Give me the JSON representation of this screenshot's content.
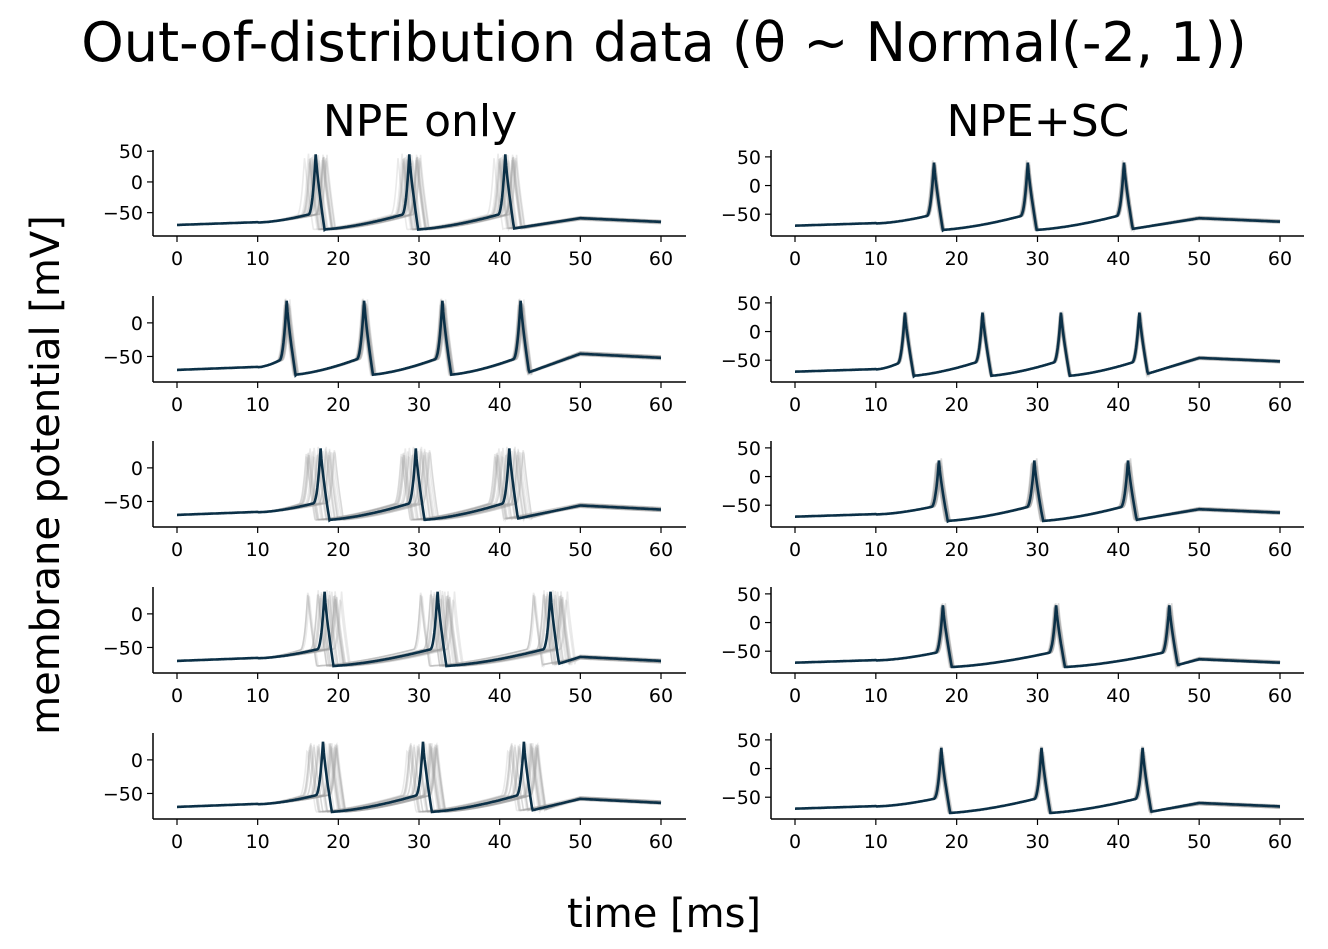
{
  "title": "Out-of-distribution data (θ ~ Normal(-2, 1))",
  "xlabel": "time [ms]",
  "ylabel": "membrane potential [mV]",
  "columns": [
    "NPE only",
    "NPE+SC"
  ],
  "colors": {
    "mean_trace": "#0b3047",
    "samples": "#9e9e9e",
    "axis": "#000000"
  },
  "chart_data": [
    {
      "type": "line",
      "panel": "row1-npe-only",
      "xlim": [
        0,
        60
      ],
      "ylim": [
        -88,
        52
      ],
      "xticks": [
        0,
        10,
        20,
        30,
        40,
        50,
        60
      ],
      "yticks": [
        -50,
        0,
        50
      ],
      "spike_times": [
        17.2,
        28.8,
        40.7
      ],
      "spike_peak": 45,
      "end_value": -65,
      "sample_spread": 1.4
    },
    {
      "type": "line",
      "panel": "row1-npe-sc",
      "xlim": [
        0,
        60
      ],
      "ylim": [
        -88,
        62
      ],
      "xticks": [
        0,
        10,
        20,
        30,
        40,
        50,
        60
      ],
      "yticks": [
        -50,
        0,
        50
      ],
      "spike_times": [
        17.2,
        28.8,
        40.7
      ],
      "spike_peak": 40,
      "end_value": -63,
      "sample_spread": 0.25
    },
    {
      "type": "line",
      "panel": "row2-npe-only",
      "xlim": [
        0,
        60
      ],
      "ylim": [
        -88,
        40
      ],
      "xticks": [
        0,
        10,
        20,
        30,
        40,
        50,
        60
      ],
      "yticks": [
        -50,
        0
      ],
      "spike_times": [
        13.6,
        23.2,
        32.9,
        42.6
      ],
      "spike_peak": 33,
      "end_value": -52,
      "sample_spread": 0.4
    },
    {
      "type": "line",
      "panel": "row2-npe-sc",
      "xlim": [
        0,
        60
      ],
      "ylim": [
        -88,
        62
      ],
      "xticks": [
        0,
        10,
        20,
        30,
        40,
        50,
        60
      ],
      "yticks": [
        -50,
        0,
        50
      ],
      "spike_times": [
        13.6,
        23.2,
        32.9,
        42.6
      ],
      "spike_peak": 33,
      "end_value": -52,
      "sample_spread": 0.2
    },
    {
      "type": "line",
      "panel": "row3-npe-only",
      "xlim": [
        0,
        60
      ],
      "ylim": [
        -88,
        40
      ],
      "xticks": [
        0,
        10,
        20,
        30,
        40,
        50,
        60
      ],
      "yticks": [
        -50,
        0
      ],
      "spike_times": [
        17.8,
        29.6,
        41.2
      ],
      "spike_peak": 29,
      "end_value": -62,
      "sample_spread": 1.8
    },
    {
      "type": "line",
      "panel": "row3-npe-sc",
      "xlim": [
        0,
        60
      ],
      "ylim": [
        -88,
        62
      ],
      "xticks": [
        0,
        10,
        20,
        30,
        40,
        50,
        60
      ],
      "yticks": [
        -50,
        0,
        50
      ],
      "spike_times": [
        17.8,
        29.6,
        41.2
      ],
      "spike_peak": 28,
      "end_value": -63,
      "sample_spread": 0.35
    },
    {
      "type": "line",
      "panel": "row4-npe-only",
      "xlim": [
        0,
        60
      ],
      "ylim": [
        -88,
        40
      ],
      "xticks": [
        0,
        10,
        20,
        30,
        40,
        50,
        60
      ],
      "yticks": [
        -50,
        0
      ],
      "spike_times": [
        18.3,
        32.3,
        46.3
      ],
      "spike_peak": 33,
      "end_value": -70,
      "sample_spread": 2.2
    },
    {
      "type": "line",
      "panel": "row4-npe-sc",
      "xlim": [
        0,
        60
      ],
      "ylim": [
        -88,
        62
      ],
      "xticks": [
        0,
        10,
        20,
        30,
        40,
        50,
        60
      ],
      "yticks": [
        -50,
        0,
        50
      ],
      "spike_times": [
        18.3,
        32.3,
        46.3
      ],
      "spike_peak": 30,
      "end_value": -70,
      "sample_spread": 0.3
    },
    {
      "type": "line",
      "panel": "row5-npe-only",
      "xlim": [
        0,
        60
      ],
      "ylim": [
        -88,
        40
      ],
      "xticks": [
        0,
        10,
        20,
        30,
        40,
        50,
        60
      ],
      "yticks": [
        -50,
        0
      ],
      "spike_times": [
        18.1,
        30.5,
        43.0
      ],
      "spike_peak": 27,
      "end_value": -64,
      "sample_spread": 2.0
    },
    {
      "type": "line",
      "panel": "row5-npe-sc",
      "xlim": [
        0,
        60
      ],
      "ylim": [
        -88,
        62
      ],
      "xticks": [
        0,
        10,
        20,
        30,
        40,
        50,
        60
      ],
      "yticks": [
        -50,
        0,
        50
      ],
      "spike_times": [
        18.1,
        30.5,
        43.0
      ],
      "spike_peak": 36,
      "end_value": -66,
      "sample_spread": 0.3
    }
  ]
}
